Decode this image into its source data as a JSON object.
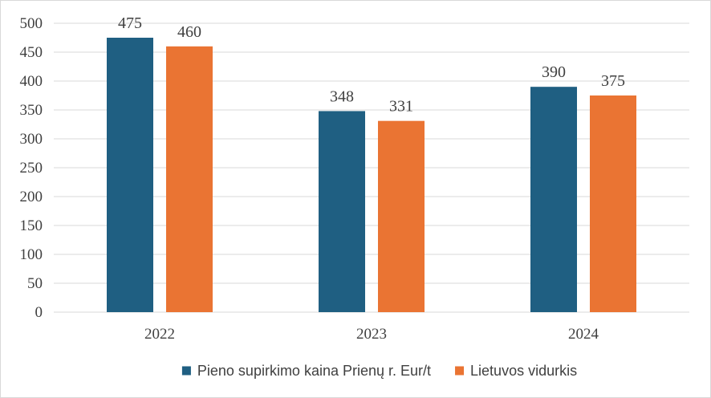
{
  "chart_data": {
    "type": "bar",
    "title": "",
    "xlabel": "",
    "ylabel": "",
    "categories": [
      "2022",
      "2023",
      "2024"
    ],
    "series": [
      {
        "name": "Pieno supirkimo kaina Prienų r. Eur/t",
        "color": "#1f5f82",
        "values": [
          475,
          348,
          390
        ]
      },
      {
        "name": "Lietuvos vidurkis",
        "color": "#ea7433",
        "values": [
          460,
          331,
          375
        ]
      }
    ],
    "ylim": [
      0,
      500
    ],
    "yticks": [
      0,
      50,
      100,
      150,
      200,
      250,
      300,
      350,
      400,
      450,
      500
    ],
    "grid": true,
    "data_labels": true,
    "legend_position": "bottom",
    "gridline_color": "#d9d9d9"
  }
}
